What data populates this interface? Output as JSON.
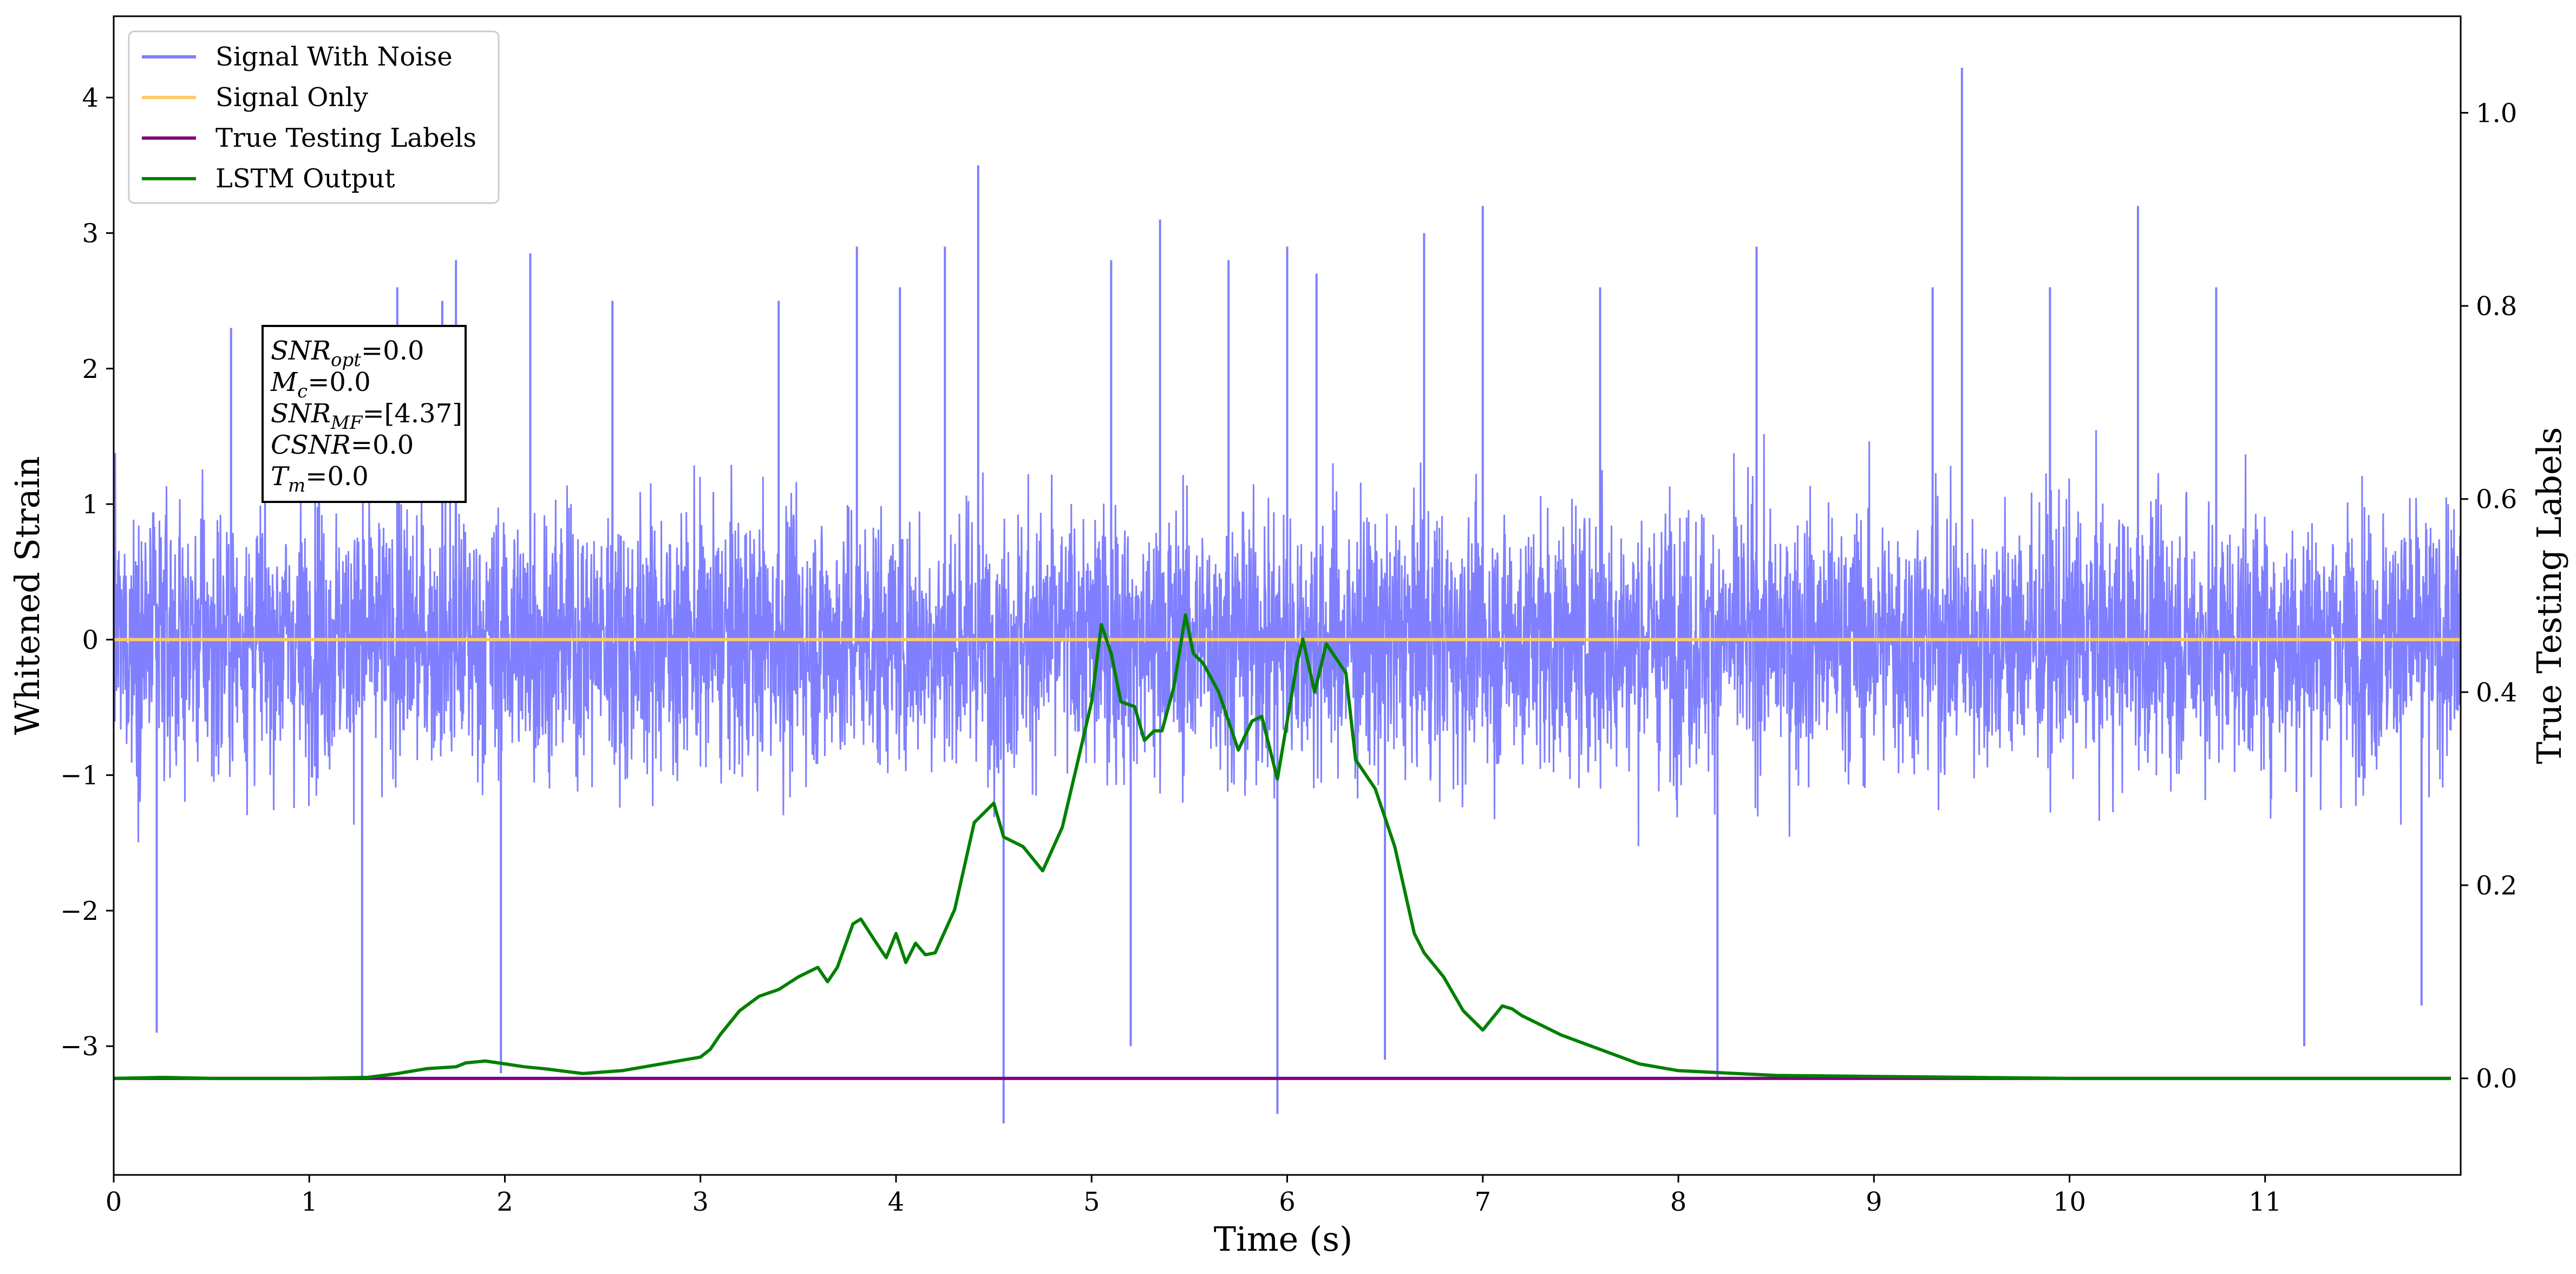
{
  "chart_data": {
    "type": "line",
    "xlabel": "Time (s)",
    "ylabel": "Whitened Strain",
    "y2label": "True Testing Labels",
    "xlim": [
      0,
      12
    ],
    "ylim": [
      -3.95,
      4.6
    ],
    "y2lim": [
      -0.1,
      1.1
    ],
    "x_ticks": [
      "0",
      "1",
      "2",
      "3",
      "4",
      "5",
      "6",
      "7",
      "8",
      "9",
      "10",
      "11"
    ],
    "y_ticks": [
      "−3",
      "−2",
      "−1",
      "0",
      "1",
      "2",
      "3",
      "4"
    ],
    "y2_ticks": [
      "0.0",
      "0.2",
      "0.4",
      "0.6",
      "0.8",
      "1.0"
    ],
    "grid": false,
    "legend_placement": "top-left",
    "series": [
      {
        "name": "Signal With Noise",
        "color": "#7f7fff",
        "axis": "left",
        "noise_envelope": {
          "typical_abs": 1.3,
          "min": -3.57,
          "max": 4.22
        },
        "spikes": [
          [
            0.22,
            -2.9
          ],
          [
            0.6,
            2.3
          ],
          [
            1.05,
            2.3
          ],
          [
            1.27,
            -3.25
          ],
          [
            1.45,
            2.6
          ],
          [
            1.68,
            2.5
          ],
          [
            1.75,
            2.8
          ],
          [
            1.98,
            -3.2
          ],
          [
            2.13,
            2.85
          ],
          [
            2.55,
            2.5
          ],
          [
            3.4,
            2.5
          ],
          [
            3.8,
            2.9
          ],
          [
            4.02,
            2.6
          ],
          [
            4.25,
            2.9
          ],
          [
            4.42,
            3.5
          ],
          [
            4.55,
            -3.57
          ],
          [
            5.1,
            2.8
          ],
          [
            5.2,
            -3.0
          ],
          [
            5.35,
            3.1
          ],
          [
            5.7,
            2.8
          ],
          [
            5.95,
            -3.5
          ],
          [
            6.0,
            2.9
          ],
          [
            6.15,
            2.7
          ],
          [
            6.5,
            -3.1
          ],
          [
            6.7,
            3.0
          ],
          [
            7.0,
            3.2
          ],
          [
            7.6,
            2.6
          ],
          [
            8.2,
            -3.25
          ],
          [
            8.4,
            2.9
          ],
          [
            9.3,
            2.6
          ],
          [
            9.45,
            4.22
          ],
          [
            9.9,
            2.6
          ],
          [
            10.35,
            3.2
          ],
          [
            10.75,
            2.6
          ],
          [
            11.2,
            -3.0
          ],
          [
            11.8,
            -2.7
          ]
        ]
      },
      {
        "name": "Signal Only",
        "color": "#ffc966",
        "axis": "left",
        "x": [
          0,
          12
        ],
        "y": [
          0,
          0
        ]
      },
      {
        "name": "True Testing Labels",
        "color": "#800080",
        "axis": "right",
        "x": [
          0,
          11.95
        ],
        "y": [
          0,
          0
        ]
      },
      {
        "name": "LSTM Output",
        "color": "#008000",
        "axis": "right",
        "x": [
          0,
          0.25,
          0.5,
          1.0,
          1.3,
          1.45,
          1.6,
          1.75,
          1.8,
          1.9,
          2.0,
          2.1,
          2.2,
          2.4,
          2.6,
          2.8,
          3.0,
          3.05,
          3.1,
          3.2,
          3.3,
          3.4,
          3.5,
          3.6,
          3.65,
          3.7,
          3.78,
          3.82,
          3.9,
          3.95,
          4.0,
          4.05,
          4.1,
          4.15,
          4.2,
          4.3,
          4.4,
          4.5,
          4.55,
          4.65,
          4.75,
          4.85,
          4.92,
          5.0,
          5.05,
          5.1,
          5.15,
          5.22,
          5.27,
          5.32,
          5.36,
          5.42,
          5.48,
          5.52,
          5.57,
          5.65,
          5.75,
          5.82,
          5.87,
          5.95,
          6.05,
          6.08,
          6.14,
          6.2,
          6.3,
          6.35,
          6.45,
          6.55,
          6.65,
          6.7,
          6.8,
          6.9,
          7.0,
          7.1,
          7.15,
          7.2,
          7.3,
          7.4,
          7.6,
          7.8,
          8.0,
          8.5,
          9.0,
          9.5,
          10.0,
          11.0,
          11.95
        ],
        "y": [
          0.0,
          0.001,
          0.0,
          0.0,
          0.001,
          0.005,
          0.01,
          0.012,
          0.016,
          0.018,
          0.015,
          0.012,
          0.01,
          0.005,
          0.008,
          0.015,
          0.022,
          0.03,
          0.045,
          0.07,
          0.085,
          0.092,
          0.105,
          0.115,
          0.1,
          0.115,
          0.16,
          0.165,
          0.14,
          0.125,
          0.15,
          0.12,
          0.14,
          0.128,
          0.13,
          0.175,
          0.265,
          0.285,
          0.25,
          0.24,
          0.215,
          0.26,
          0.32,
          0.39,
          0.47,
          0.44,
          0.39,
          0.385,
          0.35,
          0.36,
          0.36,
          0.405,
          0.48,
          0.44,
          0.43,
          0.4,
          0.34,
          0.37,
          0.375,
          0.31,
          0.43,
          0.455,
          0.4,
          0.45,
          0.42,
          0.33,
          0.3,
          0.24,
          0.15,
          0.13,
          0.105,
          0.07,
          0.05,
          0.075,
          0.072,
          0.065,
          0.055,
          0.045,
          0.03,
          0.015,
          0.008,
          0.003,
          0.002,
          0.001,
          0.0,
          0.0,
          0.0
        ]
      }
    ]
  },
  "annotation": {
    "lines": [
      {
        "sym": "SNR",
        "sub": "opt",
        "val": "=0.0"
      },
      {
        "sym": "M",
        "sub": "c",
        "val": "=0.0"
      },
      {
        "sym": "SNR",
        "sub": "MF",
        "val": "=[4.37]"
      },
      {
        "sym": "CSNR",
        "sub": "",
        "val": "=0.0"
      },
      {
        "sym": "T",
        "sub": "m",
        "val": "=0.0"
      }
    ]
  }
}
